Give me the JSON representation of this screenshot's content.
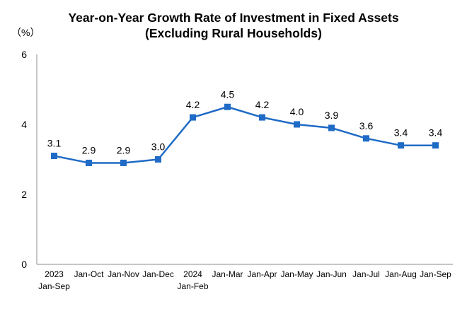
{
  "chart_data": {
    "type": "line",
    "title_line1": "Year-on-Year Growth Rate of Investment in Fixed Assets",
    "title_line2": "(Excluding Rural Households)",
    "unit_label": "（%）",
    "categories": [
      [
        "2023",
        "Jan-Sep"
      ],
      [
        "Jan-Oct"
      ],
      [
        "Jan-Nov"
      ],
      [
        "Jan-Dec"
      ],
      [
        "2024",
        "Jan-Feb"
      ],
      [
        "Jan-Mar"
      ],
      [
        "Jan-Apr"
      ],
      [
        "Jan-May"
      ],
      [
        "Jan-Jun"
      ],
      [
        "Jan-Jul"
      ],
      [
        "Jan-Aug"
      ],
      [
        "Jan-Sep"
      ]
    ],
    "values": [
      3.1,
      2.9,
      2.9,
      3.0,
      4.2,
      4.5,
      4.2,
      4.0,
      3.9,
      3.6,
      3.4,
      3.4
    ],
    "data_labels": [
      "3.1",
      "2.9",
      "2.9",
      "3.0",
      "4.2",
      "4.5",
      "4.2",
      "4.0",
      "3.9",
      "3.6",
      "3.4",
      "3.4"
    ],
    "yticks": [
      "0",
      "2",
      "4",
      "6"
    ],
    "ylim": [
      0,
      6
    ],
    "grid": false,
    "line_color": "#1f6bc6",
    "marker_color": "#1f6bc6"
  }
}
